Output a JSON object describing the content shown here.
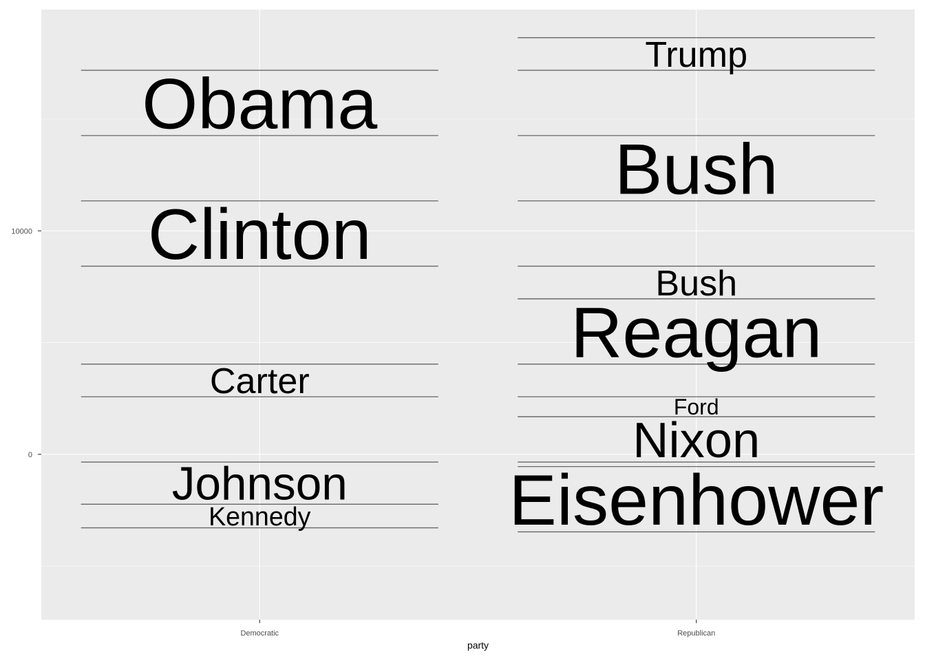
{
  "chart_data": {
    "type": "word-timeline",
    "xlabel": "party",
    "ylabel": "",
    "categories": [
      "Democratic",
      "Republican"
    ],
    "ylim": [
      -7400,
      19900
    ],
    "yticks": [
      0,
      10000
    ],
    "ytick_labels": [
      "0",
      "10000"
    ],
    "grid": true,
    "colors": {
      "panel": "#ebebeb",
      "grid": "#ffffff",
      "segment": "#666666",
      "text": "#000000"
    },
    "presidents": [
      {
        "name": "Eisenhower",
        "party": "Republican",
        "start": -3469,
        "end": -547
      },
      {
        "name": "Kennedy",
        "party": "Democratic",
        "start": -3288,
        "end": -2235
      },
      {
        "name": "Johnson",
        "party": "Democratic",
        "start": -2235,
        "end": -346
      },
      {
        "name": "Nixon",
        "party": "Republican",
        "start": -346,
        "end": 1681
      },
      {
        "name": "Ford",
        "party": "Republican",
        "start": 1681,
        "end": 2576
      },
      {
        "name": "Carter",
        "party": "Democratic",
        "start": 2576,
        "end": 4037
      },
      {
        "name": "Reagan",
        "party": "Republican",
        "start": 4037,
        "end": 6959
      },
      {
        "name": "Bush",
        "party": "Republican",
        "start": 6959,
        "end": 8420
      },
      {
        "name": "Clinton",
        "party": "Democratic",
        "start": 8420,
        "end": 11342
      },
      {
        "name": "Bush",
        "party": "Republican",
        "start": 11342,
        "end": 14264
      },
      {
        "name": "Obama",
        "party": "Democratic",
        "start": 14264,
        "end": 17186
      },
      {
        "name": "Trump",
        "party": "Republican",
        "start": 17186,
        "end": 18647
      }
    ]
  }
}
